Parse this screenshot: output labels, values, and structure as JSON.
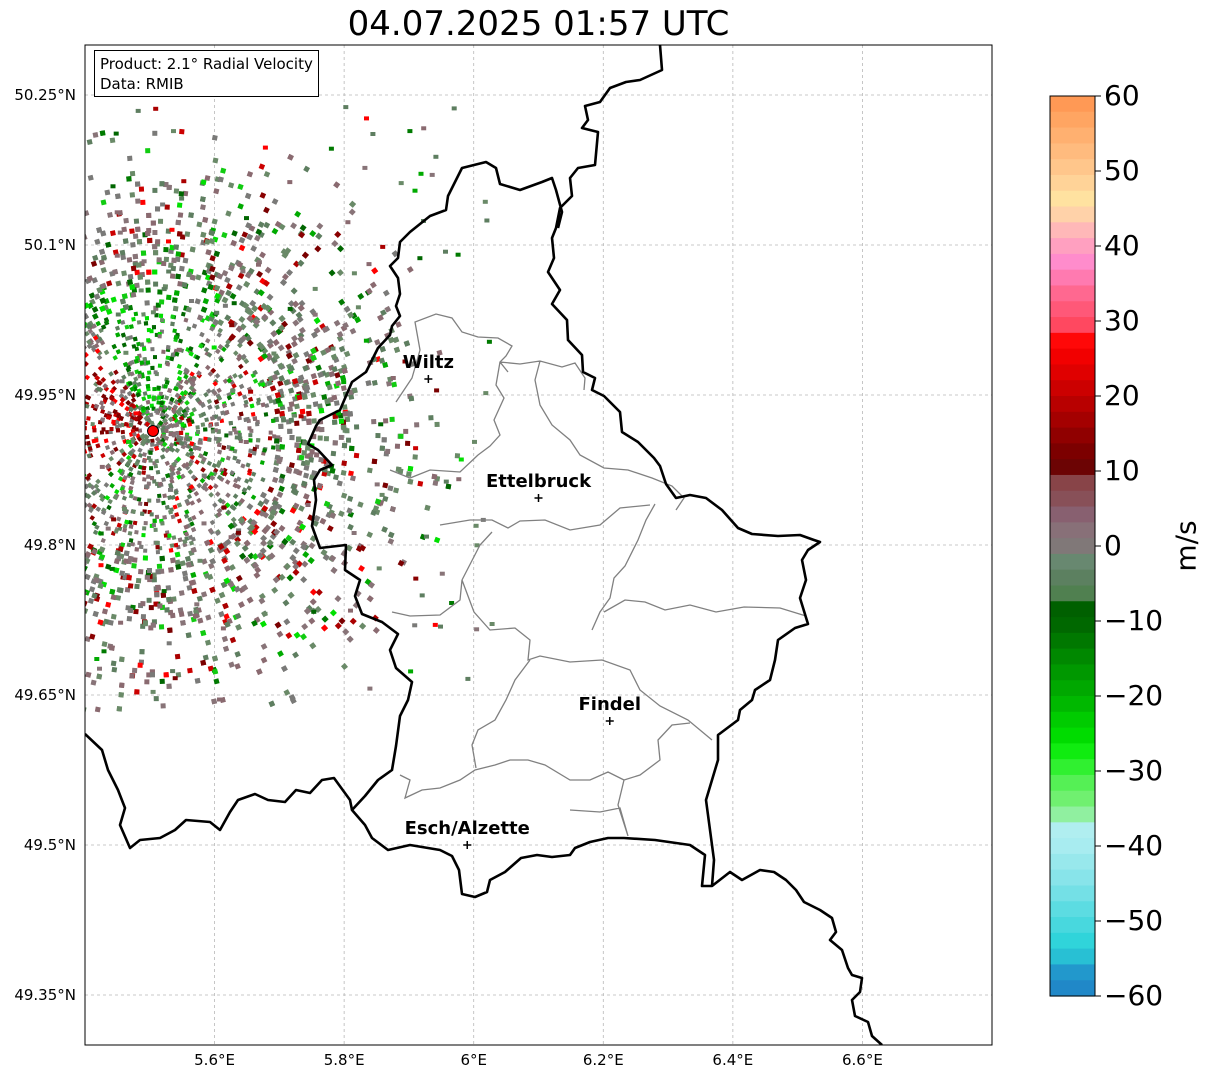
{
  "title": "04.07.2025 01:57 UTC",
  "info": {
    "product": "Product: 2.1° Radial Velocity",
    "data_source": "Data: RMIB"
  },
  "map": {
    "lon_range": [
      5.4,
      6.8
    ],
    "lat_range": [
      49.3,
      50.3
    ],
    "lat_ticks": [
      {
        "value": 50.25,
        "label": "50.25°N"
      },
      {
        "value": 50.1,
        "label": "50.1°N"
      },
      {
        "value": 49.95,
        "label": "49.95°N"
      },
      {
        "value": 49.8,
        "label": "49.8°N"
      },
      {
        "value": 49.65,
        "label": "49.65°N"
      },
      {
        "value": 49.5,
        "label": "49.5°N"
      },
      {
        "value": 49.35,
        "label": "49.35°N"
      }
    ],
    "lon_ticks": [
      {
        "value": 5.6,
        "label": "5.6°E"
      },
      {
        "value": 5.8,
        "label": "5.8°E"
      },
      {
        "value": 6.0,
        "label": "6°E"
      },
      {
        "value": 6.2,
        "label": "6.2°E"
      },
      {
        "value": 6.4,
        "label": "6.4°E"
      },
      {
        "value": 6.6,
        "label": "6.6°E"
      }
    ],
    "cities": [
      {
        "name": "Wiltz",
        "lon": 5.93,
        "lat": 49.966
      },
      {
        "name": "Ettelbruck",
        "lon": 6.1,
        "lat": 49.847
      },
      {
        "name": "Findel",
        "lon": 6.21,
        "lat": 49.624
      },
      {
        "name": "Esch/Alzette",
        "lon": 5.99,
        "lat": 49.5
      }
    ],
    "radar_site": {
      "lon": 5.505,
      "lat": 49.914,
      "color": "#ff0000"
    },
    "grid": true
  },
  "colorbar": {
    "label": "m/s",
    "range": [
      -60,
      60
    ],
    "ticks": [
      {
        "value": 60,
        "label": "60"
      },
      {
        "value": 50,
        "label": "50"
      },
      {
        "value": 40,
        "label": "40"
      },
      {
        "value": 30,
        "label": "30"
      },
      {
        "value": 20,
        "label": "20"
      },
      {
        "value": 10,
        "label": "10"
      },
      {
        "value": 0,
        "label": "0"
      },
      {
        "value": -10,
        "label": "−10"
      },
      {
        "value": -20,
        "label": "−20"
      },
      {
        "value": -30,
        "label": "−30"
      },
      {
        "value": -40,
        "label": "−40"
      },
      {
        "value": -50,
        "label": "−50"
      },
      {
        "value": -60,
        "label": "−60"
      }
    ],
    "colors_top_to_bottom": [
      "#ff9955",
      "#ffa562",
      "#ffb070",
      "#ffbb7e",
      "#ffc68b",
      "#ffd398",
      "#ffe2a0",
      "#ffd2a9",
      "#ffb8b8",
      "#ffa0c0",
      "#ff8ccc",
      "#ff7ab0",
      "#ff6890",
      "#ff5878",
      "#ff4860",
      "#ff0808",
      "#f20000",
      "#e00000",
      "#cc0000",
      "#b80000",
      "#a40000",
      "#900000",
      "#7c0000",
      "#6c0404",
      "#884448",
      "#885058",
      "#886070",
      "#887078",
      "#807878",
      "#688870",
      "#5c8060",
      "#508050",
      "#006000",
      "#006800",
      "#007800",
      "#008800",
      "#009800",
      "#00a800",
      "#00b800",
      "#00cc00",
      "#00dc00",
      "#10ec10",
      "#30f030",
      "#55f055",
      "#70f070",
      "#90f0a0",
      "#b0eef0",
      "#a8ecf0",
      "#98e8ec",
      "#88e4ea",
      "#74e0e6",
      "#5cdce2",
      "#48d8de",
      "#30d4da",
      "#28c0d4",
      "#2298cc",
      "#2088c8"
    ]
  },
  "radar_colors": {
    "reds": [
      "#aa0000",
      "#7a0000",
      "#cc0000",
      "#ff0000",
      "#8a0000"
    ],
    "greens": [
      "#007a00",
      "#006600",
      "#00aa00",
      "#11cc11",
      "#00e000"
    ],
    "neutrals": [
      "#6a8a68",
      "#8a6a70",
      "#887478",
      "#5e7e60",
      "#7a7a78"
    ]
  }
}
